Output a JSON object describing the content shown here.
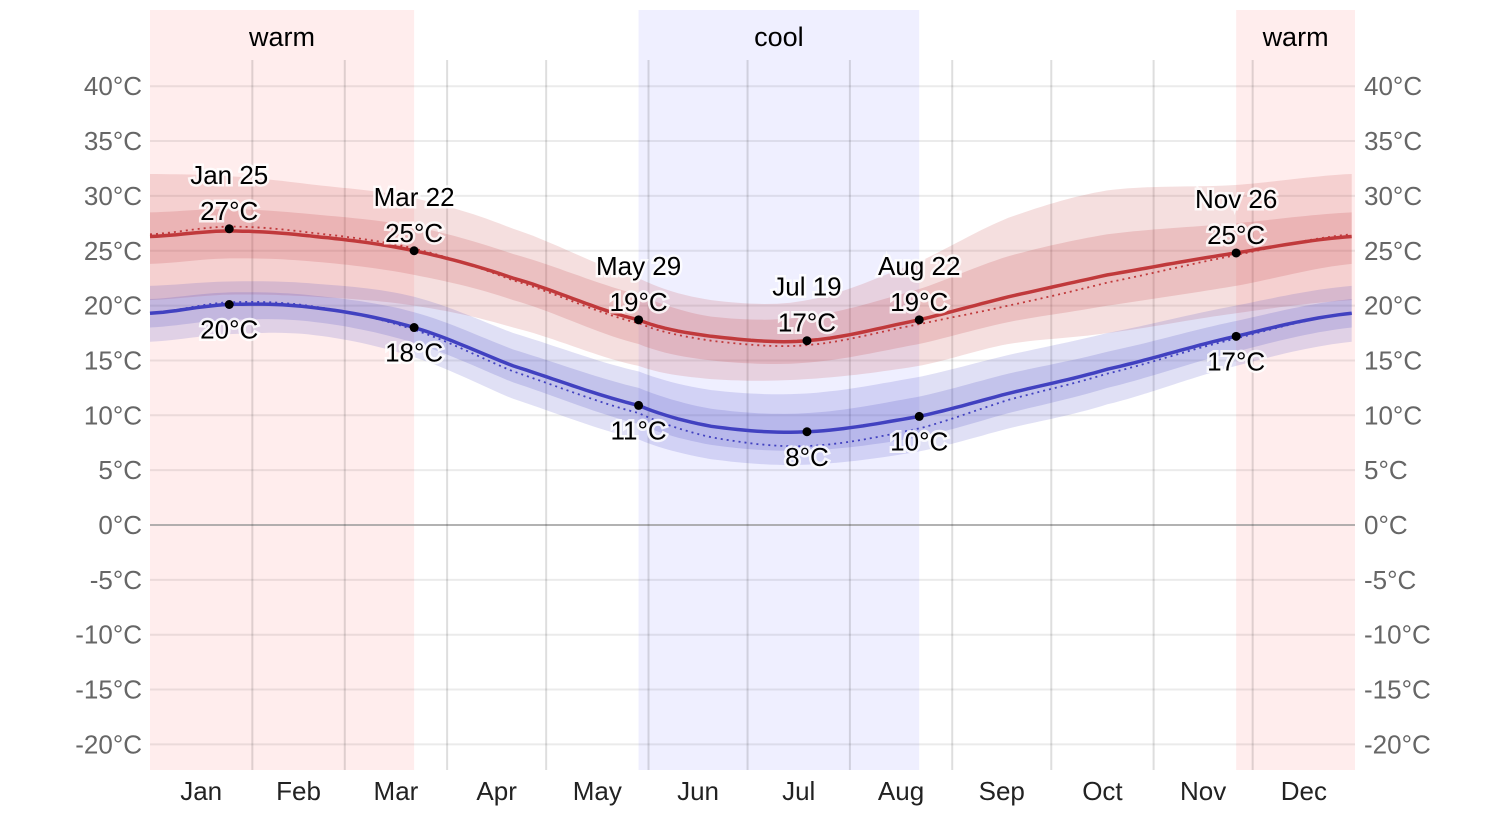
{
  "chart_data": {
    "type": "area",
    "title": "",
    "ylabel": "",
    "ylim": [
      -22.5,
      42.5
    ],
    "yticks": [
      40,
      35,
      30,
      25,
      20,
      15,
      10,
      5,
      0,
      -5,
      -10,
      -15,
      -20
    ],
    "ytick_suffix": "°C",
    "months": [
      "Jan",
      "Feb",
      "Mar",
      "Apr",
      "May",
      "Jun",
      "Jul",
      "Aug",
      "Sep",
      "Oct",
      "Nov",
      "Dec"
    ],
    "month_starts": [
      0,
      31,
      59,
      90,
      120,
      151,
      181,
      212,
      243,
      273,
      304,
      334,
      365
    ],
    "seasons": [
      {
        "label": "warm",
        "start": 0,
        "end": 80,
        "color": "#ffeded",
        "show_label": true
      },
      {
        "label": "cool",
        "start": 148,
        "end": 233,
        "color": "#efefff",
        "show_label": true
      },
      {
        "label": "warm",
        "start": 329,
        "end": 365,
        "color": "#ffeded",
        "show_label": true
      }
    ],
    "days": [
      0,
      24,
      50,
      80,
      110,
      148,
      170,
      199,
      233,
      260,
      290,
      329,
      364
    ],
    "series": [
      {
        "name": "high",
        "color": "#c0393b",
        "avg": [
          26.3,
          26.8,
          26.3,
          25.0,
          22.5,
          18.7,
          17.2,
          16.8,
          18.7,
          20.8,
          22.8,
          24.8,
          26.3
        ],
        "dotted": [
          26.5,
          27.2,
          26.6,
          25.2,
          22.3,
          18.4,
          16.8,
          16.4,
          18.3,
          20.0,
          22.1,
          24.6,
          26.5
        ],
        "p10": [
          20.5,
          21,
          20.8,
          20,
          18,
          14.5,
          13.3,
          13.3,
          14.5,
          16.5,
          17.5,
          19.3,
          20.5
        ],
        "p25": [
          23.8,
          24.3,
          24,
          22.8,
          20.5,
          16.5,
          15,
          14.8,
          16.5,
          18.5,
          20,
          21.8,
          23.8
        ],
        "p75": [
          28.5,
          28.8,
          28.3,
          27.2,
          24.7,
          21,
          19,
          19,
          21.5,
          24.5,
          26.5,
          27.5,
          28.5
        ],
        "p90": [
          32,
          31.8,
          31,
          29.8,
          27,
          22.5,
          20.5,
          20.5,
          24,
          28,
          30.5,
          31,
          32
        ]
      },
      {
        "name": "low",
        "color": "#4141c0",
        "avg": [
          19.3,
          20.1,
          19.8,
          18.0,
          14.5,
          10.9,
          9.0,
          8.5,
          9.9,
          12.0,
          14.2,
          17.2,
          19.3
        ],
        "dotted": [
          19.3,
          20.3,
          19.9,
          17.8,
          14.0,
          10.2,
          8.0,
          7.2,
          8.8,
          11.4,
          13.8,
          17.0,
          19.3
        ],
        "p10": [
          16.7,
          17.4,
          17.3,
          15.3,
          11.5,
          7.8,
          6,
          5.5,
          6.7,
          8.8,
          11,
          14.5,
          16.7
        ],
        "p25": [
          18,
          18.7,
          18.5,
          16.6,
          13,
          9.2,
          7.3,
          6.8,
          8,
          10.2,
          12.5,
          15.8,
          18
        ],
        "p75": [
          20.6,
          21.2,
          20.9,
          19.4,
          16,
          12.5,
          10.6,
          10.2,
          11.7,
          13.8,
          15.8,
          18.6,
          20.6
        ],
        "p90": [
          21.8,
          22.2,
          22,
          20.8,
          17.5,
          14,
          12.3,
          12,
          13.5,
          15.5,
          17.5,
          20,
          21.8
        ]
      }
    ],
    "annotations": [
      {
        "day": 24,
        "date": "Jan 25",
        "high": 27,
        "high_label": "27°C",
        "low": 20.1,
        "low_label": "20°C"
      },
      {
        "day": 80,
        "date": "Mar 22",
        "high": 25.0,
        "high_label": "25°C",
        "low": 18.0,
        "low_label": "18°C"
      },
      {
        "day": 148,
        "date": "May 29",
        "high": 18.7,
        "high_label": "19°C",
        "low": 10.9,
        "low_label": "11°C"
      },
      {
        "day": 199,
        "date": "Jul 19",
        "high": 16.8,
        "high_label": "17°C",
        "low": 8.5,
        "low_label": "8°C"
      },
      {
        "day": 233,
        "date": "Aug 22",
        "high": 18.7,
        "high_label": "19°C",
        "low": 9.9,
        "low_label": "10°C"
      },
      {
        "day": 329,
        "date": "Nov 26",
        "high": 24.8,
        "high_label": "25°C",
        "low": 17.2,
        "low_label": "17°C"
      }
    ]
  }
}
